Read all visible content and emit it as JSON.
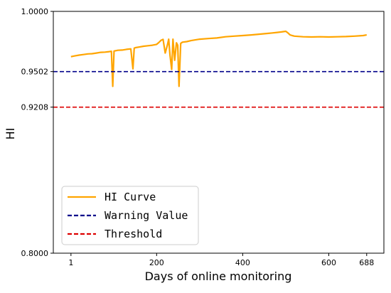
{
  "chart_data": {
    "type": "line",
    "title": "",
    "xlabel": "Days of online monitoring",
    "ylabel": "HI",
    "xlim": [
      -40,
      728
    ],
    "ylim": [
      0.8,
      1.0
    ],
    "x_ticks": [
      1,
      200,
      400,
      600,
      688
    ],
    "x_tick_labels": [
      "1",
      "200",
      "400",
      "600",
      "688"
    ],
    "y_ticks": [
      0.8,
      0.9208,
      0.9502,
      1.0
    ],
    "y_tick_labels": [
      "0.8000",
      "0.9208",
      "0.9502",
      "1.0000"
    ],
    "grid": false,
    "legend_position": "lower-left",
    "series": [
      {
        "name": "HI Curve",
        "color": "#FFA500",
        "style": "solid",
        "x": [
          1,
          10,
          20,
          30,
          40,
          50,
          60,
          70,
          80,
          90,
          95,
          98,
          101,
          110,
          120,
          130,
          140,
          145,
          148,
          151,
          160,
          170,
          180,
          190,
          200,
          205,
          210,
          215,
          220,
          225,
          228,
          231,
          235,
          238,
          242,
          246,
          249,
          252,
          256,
          260,
          270,
          280,
          290,
          300,
          320,
          340,
          360,
          380,
          400,
          420,
          440,
          460,
          480,
          490,
          500,
          505,
          510,
          515,
          520,
          540,
          560,
          580,
          600,
          620,
          640,
          660,
          680,
          688
        ],
        "y": [
          0.9625,
          0.9632,
          0.9638,
          0.9643,
          0.9648,
          0.965,
          0.9655,
          0.9661,
          0.9663,
          0.9667,
          0.967,
          0.938,
          0.9672,
          0.9678,
          0.968,
          0.9686,
          0.969,
          0.9525,
          0.9696,
          0.97,
          0.9705,
          0.9712,
          0.9716,
          0.972,
          0.9727,
          0.9742,
          0.976,
          0.9768,
          0.9655,
          0.972,
          0.977,
          0.964,
          0.952,
          0.977,
          0.9595,
          0.974,
          0.972,
          0.938,
          0.9735,
          0.9745,
          0.975,
          0.9758,
          0.9764,
          0.977,
          0.9775,
          0.978,
          0.979,
          0.9795,
          0.98,
          0.9805,
          0.9812,
          0.9818,
          0.9826,
          0.983,
          0.9835,
          0.9822,
          0.9805,
          0.98,
          0.9795,
          0.979,
          0.9788,
          0.979,
          0.9788,
          0.979,
          0.9792,
          0.9795,
          0.98,
          0.9805
        ]
      },
      {
        "name": "Warning Value",
        "color": "#00008B",
        "style": "dashed",
        "y_constant": 0.9502
      },
      {
        "name": "Threshold",
        "color": "#DD0000",
        "style": "dashed",
        "y_constant": 0.9208
      }
    ]
  }
}
